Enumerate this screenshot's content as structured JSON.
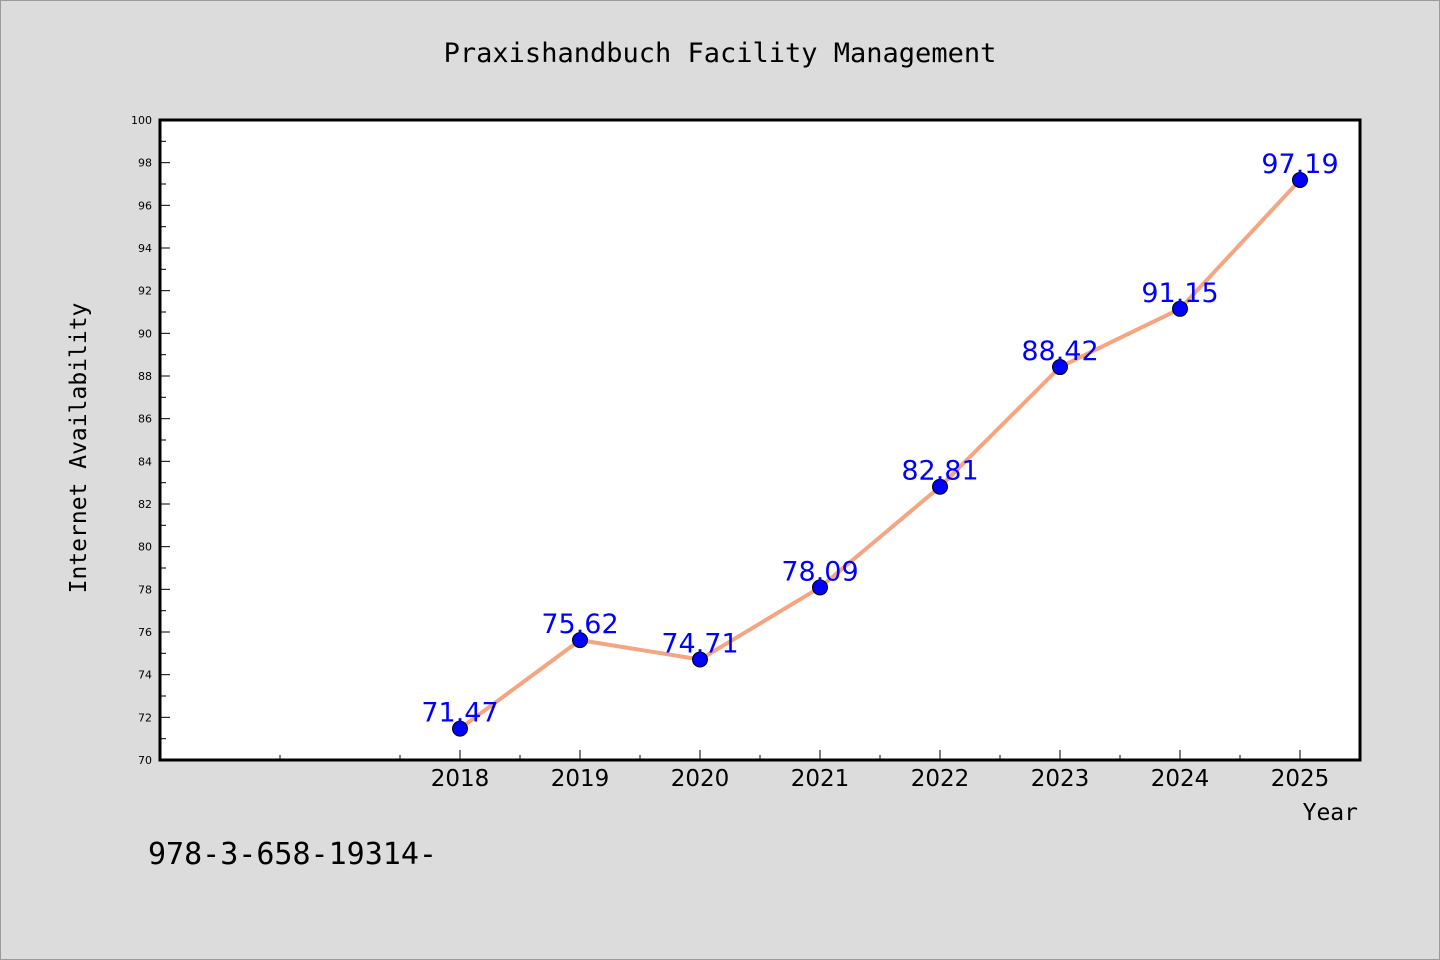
{
  "chart_data": {
    "type": "line",
    "title": "Praxishandbuch Facility Management",
    "xlabel": "Year",
    "ylabel": "Internet Availability",
    "x": [
      "2018",
      "2019",
      "2020",
      "2021",
      "2022",
      "2023",
      "2024",
      "2025"
    ],
    "series": [
      {
        "values": [
          71.47,
          75.62,
          74.71,
          78.09,
          82.81,
          88.42,
          91.15,
          97.19
        ],
        "data_labels": [
          "71.47",
          "75.62",
          "74.71",
          "78.09",
          "82.81",
          "88.42",
          "91.15",
          "97.19"
        ]
      }
    ],
    "ylim": [
      70,
      100
    ],
    "y_ticks": [
      "70",
      "72",
      "74",
      "76",
      "78",
      "80",
      "82",
      "84",
      "86",
      "88",
      "90",
      "92",
      "94",
      "96",
      "98",
      "100"
    ],
    "x_range": [
      2015.5,
      2025.5
    ],
    "grid": false,
    "legend": false,
    "colors": {
      "background": "#dcdcdc",
      "plot_area": "#ffffff",
      "line": "#f4a582",
      "marker": "#0000ff",
      "data_label": "#0000ff",
      "axis": "#000000"
    }
  },
  "footer": {
    "isbn_text": "978-3-658-19314-"
  }
}
